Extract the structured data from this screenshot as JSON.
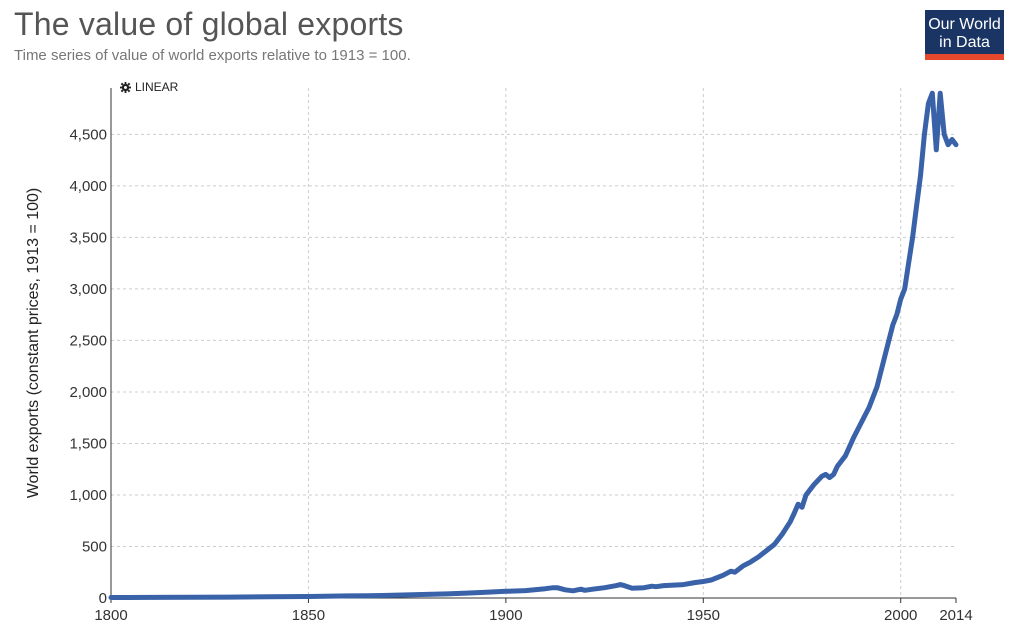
{
  "header": {
    "title": "The value of global exports",
    "subtitle": "Time series of value of world exports relative to 1913 = 100.",
    "logo_line1": "Our World",
    "logo_line2": "in Data"
  },
  "controls": {
    "scale_label": "LINEAR",
    "scale_icon": "gear-icon"
  },
  "colors": {
    "line": "#3a62a8",
    "logo_bg": "#1a3564",
    "logo_accent": "#e5482c"
  },
  "chart_data": {
    "type": "line",
    "title": "The value of global exports",
    "ylabel": "World exports (constant prices, 1913 = 100)",
    "xlabel": "",
    "xlim": [
      1800,
      2014
    ],
    "ylim": [
      0,
      4950
    ],
    "xticks": [
      1800,
      1850,
      1900,
      1950,
      2000,
      2014
    ],
    "yticks": [
      0,
      500,
      1000,
      1500,
      2000,
      2500,
      3000,
      3500,
      4000,
      4500
    ],
    "ytick_labels": [
      "0",
      "500",
      "1,000",
      "1,500",
      "2,000",
      "2,500",
      "3,000",
      "3,500",
      "4,000",
      "4,500"
    ],
    "grid": true,
    "series": [
      {
        "name": "",
        "x": [
          1800,
          1810,
          1820,
          1830,
          1840,
          1850,
          1860,
          1865,
          1870,
          1875,
          1880,
          1885,
          1890,
          1895,
          1900,
          1905,
          1910,
          1912,
          1913,
          1915,
          1917,
          1919,
          1920,
          1922,
          1925,
          1928,
          1929,
          1930,
          1932,
          1935,
          1937,
          1938,
          1940,
          1945,
          1948,
          1950,
          1952,
          1955,
          1957,
          1958,
          1960,
          1962,
          1964,
          1966,
          1968,
          1970,
          1972,
          1973,
          1974,
          1975,
          1976,
          1978,
          1980,
          1981,
          1982,
          1983,
          1984,
          1986,
          1988,
          1990,
          1992,
          1994,
          1996,
          1998,
          1999,
          2000,
          2001,
          2002,
          2003,
          2004,
          2005,
          2006,
          2007,
          2008,
          2009,
          2010,
          2011,
          2012,
          2013,
          2014
        ],
        "y": [
          5,
          6,
          7,
          9,
          12,
          15,
          20,
          22,
          25,
          30,
          35,
          40,
          48,
          55,
          65,
          72,
          90,
          100,
          100,
          80,
          70,
          85,
          75,
          85,
          100,
          120,
          130,
          120,
          95,
          100,
          115,
          110,
          120,
          130,
          150,
          160,
          175,
          220,
          260,
          250,
          310,
          350,
          400,
          460,
          520,
          620,
          740,
          820,
          910,
          880,
          1000,
          1100,
          1180,
          1200,
          1170,
          1200,
          1280,
          1380,
          1550,
          1700,
          1850,
          2050,
          2350,
          2650,
          2750,
          2900,
          3000,
          3250,
          3500,
          3800,
          4100,
          4500,
          4800,
          4900,
          4350,
          4900,
          4500,
          4400,
          4450,
          4400
        ]
      }
    ]
  }
}
